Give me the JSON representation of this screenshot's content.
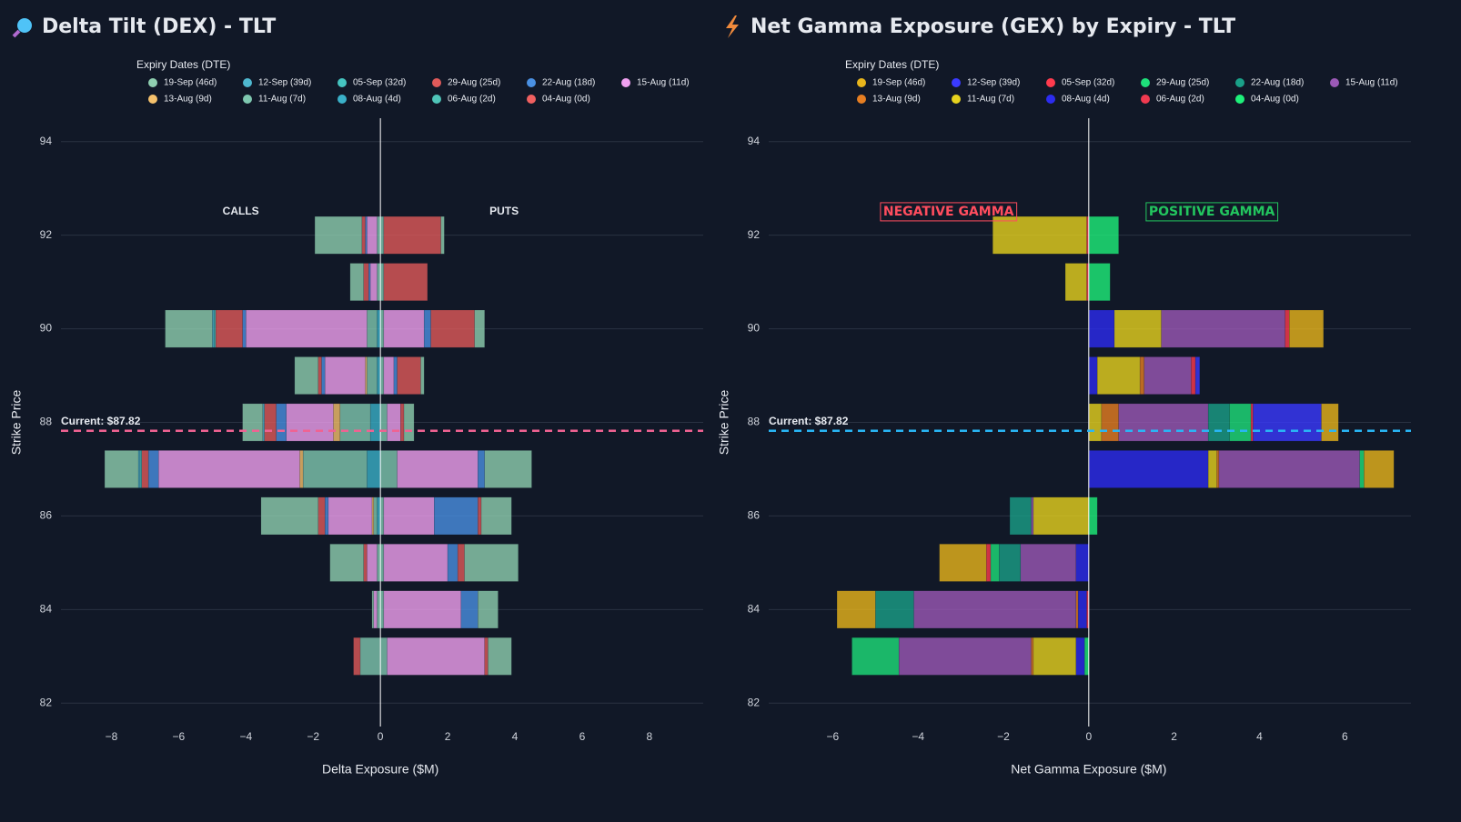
{
  "chart_data": [
    {
      "type": "bar",
      "orientation": "horizontal",
      "title": "Delta Tilt (DEX) - TLT",
      "x_label": "Delta Exposure ($M)",
      "y_label": "Strike Price",
      "legend_title": "Expiry Dates (DTE)",
      "categories": [
        83,
        84,
        85,
        86,
        87,
        88,
        89,
        90,
        91,
        92
      ],
      "xlim": [
        -9.5,
        9.6
      ],
      "ylim": [
        81.5,
        94.5
      ],
      "xticks": [
        {
          "value": -8,
          "label": "−8"
        },
        {
          "value": -6,
          "label": "−6"
        },
        {
          "value": -4,
          "label": "−4"
        },
        {
          "value": -2,
          "label": "−2"
        },
        0,
        2,
        4,
        6,
        8
      ],
      "yticks": [
        82,
        84,
        86,
        88,
        90,
        92,
        94
      ],
      "grid": true,
      "annotations": [
        "CALLS",
        "PUTS"
      ],
      "current": {
        "value": 87.82,
        "label": "Current: $87.82",
        "color": "#f06292"
      },
      "series": [
        {
          "name": "19-Sep (46d)",
          "color": "#8fcfb0",
          "calls": [
            0,
            -0.05,
            -1.0,
            -1.7,
            -1.0,
            -0.6,
            -0.7,
            -1.4,
            -0.4,
            -1.4
          ],
          "puts": [
            0.7,
            0.6,
            1.6,
            0.9,
            1.4,
            0.3,
            0.1,
            0.3,
            0,
            0.1
          ]
        },
        {
          "name": "12-Sep (39d)",
          "color": "#4fb8d0",
          "calls": [
            0,
            0,
            0,
            0,
            -0.05,
            -0.05,
            0,
            -0.05,
            0,
            0
          ],
          "puts": [
            0,
            0,
            0,
            0,
            0,
            0,
            0,
            0,
            0,
            0
          ]
        },
        {
          "name": "05-Sep (32d)",
          "color": "#45c4c0",
          "calls": [
            0,
            0,
            0,
            0,
            -0.05,
            0,
            0,
            -0.05,
            0,
            0
          ],
          "puts": [
            0,
            0,
            0,
            0,
            0,
            0,
            0,
            0,
            0,
            0
          ]
        },
        {
          "name": "29-Aug (25d)",
          "color": "#e05a5a",
          "calls": [
            -0.2,
            0,
            -0.1,
            -0.2,
            -0.2,
            -0.35,
            -0.1,
            -0.8,
            -0.15,
            -0.1
          ],
          "puts": [
            0.1,
            0,
            0.2,
            0.1,
            0,
            0.1,
            0.7,
            1.3,
            1.3,
            1.7
          ]
        },
        {
          "name": "22-Aug (18d)",
          "color": "#4a90e2",
          "calls": [
            0,
            0,
            0,
            -0.1,
            -0.3,
            -0.3,
            -0.1,
            -0.1,
            -0.05,
            -0.05
          ],
          "puts": [
            0,
            0.5,
            0.3,
            1.3,
            0.2,
            0,
            0.1,
            0.2,
            0,
            0
          ]
        },
        {
          "name": "15-Aug (11d)",
          "color": "#f0a0f0",
          "calls": [
            0,
            -0.1,
            -0.3,
            -1.3,
            -4.2,
            -1.4,
            -1.2,
            -3.6,
            -0.2,
            -0.3
          ],
          "puts": [
            2.9,
            2.3,
            1.9,
            1.5,
            2.4,
            0.4,
            0.3,
            1.2,
            0,
            0
          ]
        },
        {
          "name": "13-Aug (9d)",
          "color": "#f5c16c",
          "calls": [
            0,
            0,
            0,
            -0.05,
            -0.1,
            -0.2,
            -0.05,
            0,
            0,
            0
          ],
          "puts": [
            0,
            0,
            0,
            0,
            0,
            0,
            0,
            0,
            0,
            0
          ]
        },
        {
          "name": "11-Aug (7d)",
          "color": "#7fc8b0",
          "calls": [
            -0.6,
            -0.1,
            -0.1,
            -0.1,
            -1.9,
            -0.9,
            -0.3,
            -0.3,
            -0.1,
            -0.1
          ],
          "puts": [
            0.2,
            0.1,
            0.1,
            0.1,
            0.5,
            0.2,
            0.1,
            0.1,
            0.1,
            0.1
          ]
        },
        {
          "name": "08-Aug (4d)",
          "color": "#3ab0c8",
          "calls": [
            0,
            0,
            0,
            -0.1,
            -0.4,
            -0.3,
            -0.1,
            -0.1,
            0,
            0
          ],
          "puts": [
            0,
            0,
            0,
            0,
            0,
            0,
            0,
            0,
            0,
            0
          ]
        },
        {
          "name": "06-Aug (2d)",
          "color": "#4fc4b8",
          "calls": [
            0,
            0,
            0,
            0,
            0,
            0,
            0,
            0,
            0,
            0
          ],
          "puts": [
            0,
            0,
            0,
            0,
            0,
            0,
            0,
            0,
            0,
            0
          ]
        },
        {
          "name": "04-Aug (0d)",
          "color": "#f06060",
          "calls": [
            0,
            0,
            0,
            0,
            0,
            0,
            0,
            0,
            0,
            0
          ],
          "puts": [
            0,
            0,
            0,
            0,
            0,
            0,
            0,
            0,
            0,
            0
          ]
        }
      ]
    },
    {
      "type": "bar",
      "orientation": "horizontal",
      "title": "Net Gamma Exposure (GEX) by Expiry - TLT",
      "x_label": "Net Gamma Exposure ($M)",
      "y_label": "Strike Price",
      "legend_title": "Expiry Dates (DTE)",
      "categories": [
        83,
        84,
        85,
        86,
        87,
        88,
        89,
        90,
        91,
        92
      ],
      "xlim": [
        -7.5,
        7.55
      ],
      "ylim": [
        81.5,
        94.5
      ],
      "xticks": [
        {
          "value": -6,
          "label": "−6"
        },
        {
          "value": -4,
          "label": "−4"
        },
        {
          "value": -2,
          "label": "−2"
        },
        0,
        2,
        4,
        6
      ],
      "yticks": [
        82,
        84,
        86,
        88,
        90,
        92,
        94
      ],
      "grid": true,
      "annotations": [
        "NEGATIVE GAMMA",
        "POSITIVE GAMMA"
      ],
      "current": {
        "value": 87.82,
        "label": "Current: $87.82",
        "color": "#29b6f6"
      },
      "series": [
        {
          "name": "19-Sep (46d)",
          "color": "#e8b51c",
          "values": [
            0,
            -0.9,
            -1.1,
            0,
            0.7,
            0.4,
            0,
            0.8,
            0,
            0
          ]
        },
        {
          "name": "12-Sep (39d)",
          "color": "#3a3aff",
          "values": [
            0,
            0,
            0,
            0,
            0,
            1.6,
            0.1,
            0,
            0,
            0
          ]
        },
        {
          "name": "05-Sep (32d)",
          "color": "#ff3b4e",
          "values": [
            0,
            0,
            -0.1,
            0,
            0,
            0.05,
            0.1,
            0.1,
            0,
            0
          ]
        },
        {
          "name": "29-Aug (25d)",
          "color": "#1ee07a",
          "values": [
            -1.1,
            0,
            -0.2,
            0,
            0.1,
            0.5,
            0,
            0,
            0,
            0
          ]
        },
        {
          "name": "22-Aug (18d)",
          "color": "#1aa088",
          "values": [
            0,
            -0.9,
            -0.5,
            -0.5,
            0,
            0.5,
            0,
            0,
            0,
            0
          ]
        },
        {
          "name": "15-Aug (11d)",
          "color": "#9b59b6",
          "values": [
            -3.1,
            -3.8,
            -1.3,
            -0.05,
            3.3,
            2.1,
            1.1,
            2.9,
            0,
            0
          ]
        },
        {
          "name": "13-Aug (9d)",
          "color": "#e67e22",
          "values": [
            -0.05,
            -0.05,
            0,
            0,
            0.05,
            0.4,
            0.1,
            0,
            0,
            0
          ]
        },
        {
          "name": "11-Aug (7d)",
          "color": "#e6d21e",
          "values": [
            -1.0,
            0,
            0,
            -1.3,
            0.2,
            0.3,
            1.0,
            1.1,
            -0.5,
            -2.2
          ]
        },
        {
          "name": "08-Aug (4d)",
          "color": "#2c2cf0",
          "values": [
            -0.2,
            -0.2,
            -0.3,
            0,
            2.8,
            0,
            0.2,
            0.6,
            0,
            0
          ]
        },
        {
          "name": "06-Aug (2d)",
          "color": "#f03a50",
          "values": [
            0,
            -0.05,
            0,
            0,
            0,
            0,
            0,
            0,
            -0.05,
            -0.05
          ]
        },
        {
          "name": "04-Aug (0d)",
          "color": "#1ef07a",
          "values": [
            -0.1,
            0,
            0,
            0.2,
            0,
            0,
            0,
            0,
            0.5,
            0.7
          ]
        }
      ]
    }
  ]
}
